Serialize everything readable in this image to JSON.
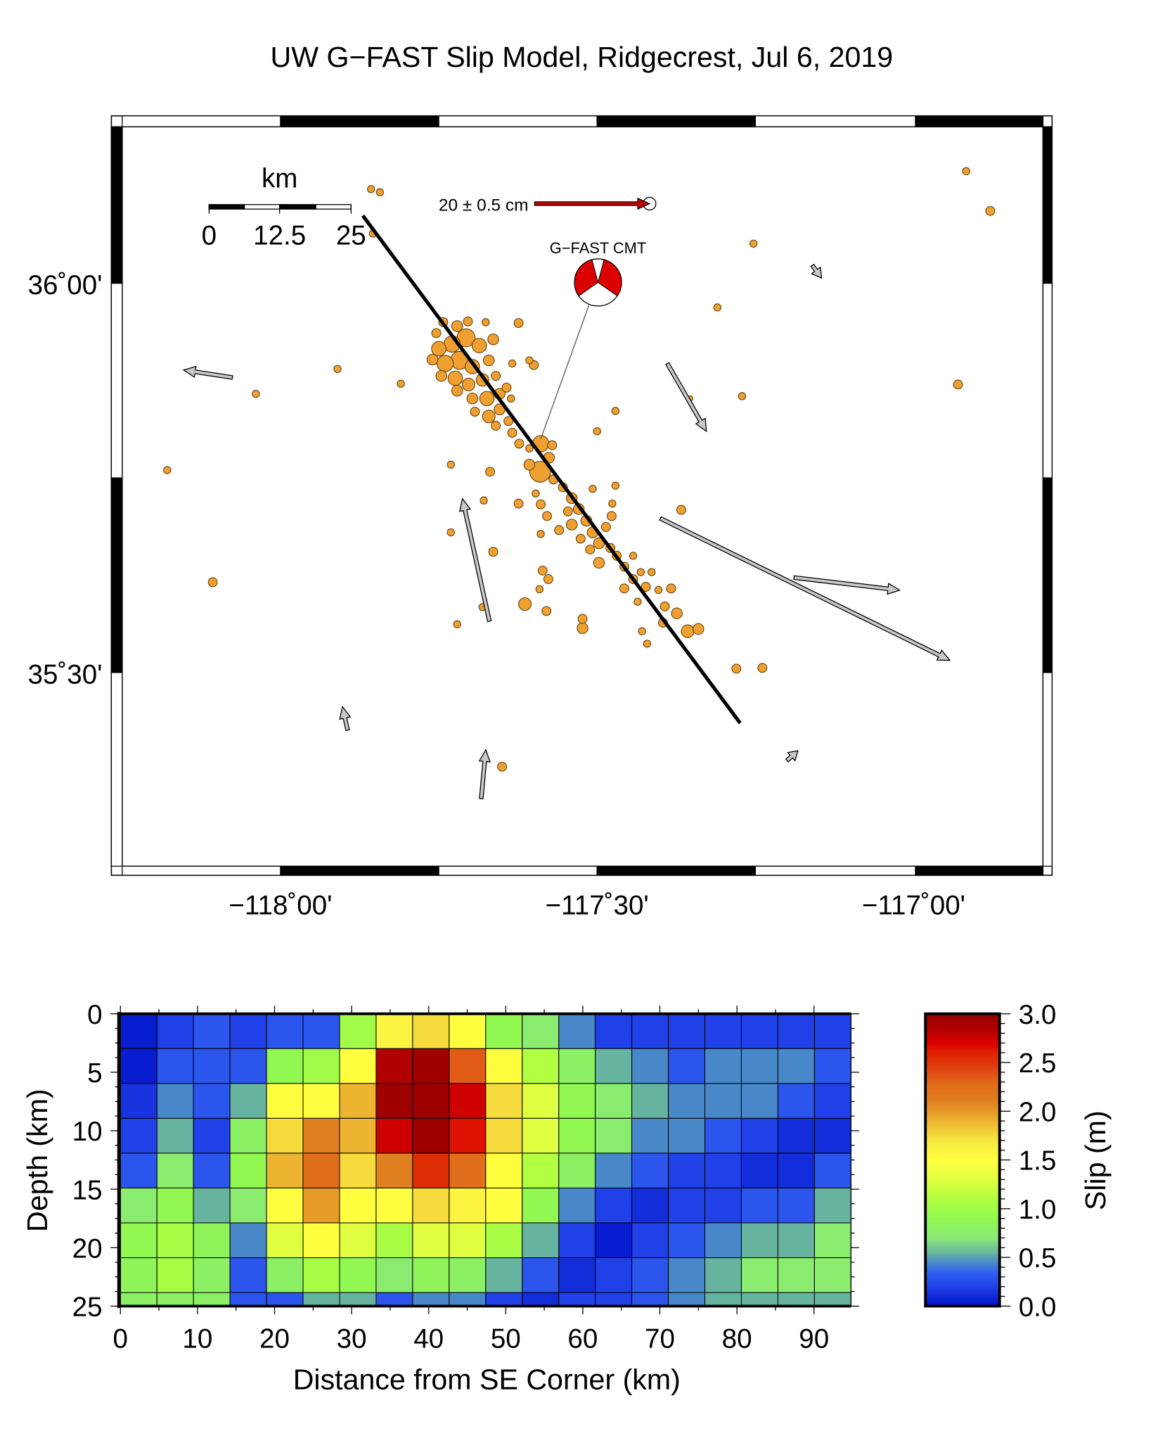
{
  "title": "UW G−FAST Slip Model, Ridgecrest, Jul 6, 2019",
  "chart_data": [
    {
      "type": "scatter",
      "name": "map",
      "lon_range": [
        -118.25,
        -116.8
      ],
      "lat_range": [
        35.25,
        36.2
      ],
      "x_ticks": [
        {
          "value": -118.0,
          "label": "−118˚00'"
        },
        {
          "value": -117.5,
          "label": "−117˚30'"
        },
        {
          "value": -117.0,
          "label": "−117˚00'"
        }
      ],
      "y_ticks": [
        {
          "value": 36.0,
          "label": "36˚00'"
        },
        {
          "value": 35.5,
          "label": "35˚30'"
        }
      ],
      "scale_bar": {
        "unit_label": "km",
        "tick_labels": [
          "0",
          "12.5",
          "25"
        ],
        "length_km": 25
      },
      "reference_vector": {
        "label": "20 ± 0.5 cm",
        "value_cm": 20,
        "color": "#cc0000"
      },
      "cmt": {
        "label": "G−FAST CMT",
        "lon": -117.589,
        "lat": 35.8,
        "fill": "#dd0000"
      },
      "fault_trace": [
        [
          -117.87,
          36.087
        ],
        [
          -117.274,
          35.435
        ]
      ],
      "earthquake_color": "#f0a030",
      "earthquakes": [
        [
          -117.857,
          36.121,
          4.1
        ],
        [
          -117.843,
          36.117,
          4.1
        ],
        [
          -117.854,
          36.064,
          4.1
        ],
        [
          -116.917,
          36.144,
          4.1
        ],
        [
          -116.879,
          36.093,
          4.5
        ],
        [
          -117.253,
          36.051,
          4.1
        ],
        [
          -117.31,
          35.969,
          4.1
        ],
        [
          -117.91,
          35.89,
          4.1
        ],
        [
          -118.039,
          35.858,
          4.1
        ],
        [
          -117.81,
          35.871,
          4.1
        ],
        [
          -118.179,
          35.76,
          4.1
        ],
        [
          -118.107,
          35.616,
          4.5
        ],
        [
          -117.271,
          35.855,
          4.1
        ],
        [
          -116.93,
          35.87,
          4.5
        ],
        [
          -117.471,
          35.836,
          4.1
        ],
        [
          -117.5,
          35.81,
          4.1
        ],
        [
          -117.731,
          35.767,
          4.1
        ],
        [
          -117.669,
          35.758,
          4.5
        ],
        [
          -117.367,
          35.709,
          4.5
        ],
        [
          -117.28,
          35.505,
          4.5
        ],
        [
          -117.239,
          35.506,
          4.5
        ],
        [
          -117.65,
          35.379,
          4.5
        ],
        [
          -117.721,
          35.562,
          4.1
        ],
        [
          -117.681,
          35.584,
          4.1
        ],
        [
          -117.664,
          35.655,
          4.5
        ],
        [
          -117.614,
          35.588,
          5.3
        ],
        [
          -117.58,
          35.579,
          4.5
        ],
        [
          -117.523,
          35.557,
          4.9
        ],
        [
          -117.523,
          35.569,
          4.5
        ],
        [
          -117.421,
          35.537,
          4.1
        ],
        [
          -117.429,
          35.553,
          4.1
        ],
        [
          -117.624,
          35.949,
          4.5
        ],
        [
          -117.624,
          35.717,
          4.5
        ],
        [
          -117.679,
          35.721,
          4.1
        ],
        [
          -117.731,
          35.68,
          4.1
        ],
        [
          -117.6,
          35.895,
          4.5
        ],
        [
          -117.634,
          35.897,
          4.1
        ],
        [
          -117.586,
          35.631,
          4.5
        ],
        [
          -117.577,
          35.62,
          4.5
        ],
        [
          -117.591,
          35.607,
          4.1
        ],
        [
          -117.471,
          35.74,
          4.1
        ],
        [
          -117.353,
          35.852,
          3.7
        ],
        [
          -117.743,
          35.95,
          4.5
        ],
        [
          -117.721,
          35.945,
          4.9
        ],
        [
          -117.704,
          35.951,
          4.5
        ],
        [
          -117.676,
          35.95,
          4.1
        ],
        [
          -117.75,
          35.916,
          5.7
        ],
        [
          -117.729,
          35.922,
          6.1
        ],
        [
          -117.707,
          35.93,
          6.5
        ],
        [
          -117.686,
          35.92,
          5.7
        ],
        [
          -117.664,
          35.928,
          4.9
        ],
        [
          -117.76,
          35.902,
          4.9
        ],
        [
          -117.74,
          35.897,
          6.1
        ],
        [
          -117.717,
          35.901,
          6.5
        ],
        [
          -117.697,
          35.893,
          5.7
        ],
        [
          -117.671,
          35.901,
          4.9
        ],
        [
          -117.746,
          35.881,
          4.9
        ],
        [
          -117.724,
          35.878,
          5.7
        ],
        [
          -117.703,
          35.87,
          5.3
        ],
        [
          -117.681,
          35.876,
          5.3
        ],
        [
          -117.66,
          35.881,
          4.5
        ],
        [
          -117.721,
          35.862,
          4.9
        ],
        [
          -117.697,
          35.852,
          4.9
        ],
        [
          -117.674,
          35.852,
          5.7
        ],
        [
          -117.654,
          35.858,
          4.9
        ],
        [
          -117.636,
          35.852,
          4.1
        ],
        [
          -117.693,
          35.835,
          4.5
        ],
        [
          -117.671,
          35.829,
          5.3
        ],
        [
          -117.654,
          35.838,
          4.9
        ],
        [
          -117.66,
          35.817,
          4.5
        ],
        [
          -117.64,
          35.823,
          4.5
        ],
        [
          -117.634,
          35.808,
          4.5
        ],
        [
          -117.623,
          35.794,
          4.5
        ],
        [
          -117.607,
          35.788,
          4.1
        ],
        [
          -117.589,
          35.794,
          6.1
        ],
        [
          -117.571,
          35.792,
          4.5
        ],
        [
          -117.59,
          35.758,
          7.1
        ],
        [
          -117.607,
          35.767,
          4.9
        ],
        [
          -117.576,
          35.776,
          4.9
        ],
        [
          -117.569,
          35.748,
          4.5
        ],
        [
          -117.554,
          35.738,
          4.5
        ],
        [
          -117.54,
          35.724,
          4.9
        ],
        [
          -117.529,
          35.71,
          4.9
        ],
        [
          -117.517,
          35.695,
          4.9
        ],
        [
          -117.507,
          35.68,
          4.9
        ],
        [
          -117.497,
          35.666,
          4.9
        ],
        [
          -117.486,
          35.687,
          4.5
        ],
        [
          -117.477,
          35.701,
          4.5
        ],
        [
          -117.476,
          35.717,
          4.1
        ],
        [
          -117.54,
          35.69,
          4.9
        ],
        [
          -117.56,
          35.683,
          4.5
        ],
        [
          -117.526,
          35.672,
          4.5
        ],
        [
          -117.511,
          35.658,
          4.5
        ],
        [
          -117.497,
          35.641,
          4.9
        ],
        [
          -117.479,
          35.66,
          4.5
        ],
        [
          -117.469,
          35.65,
          4.5
        ],
        [
          -117.457,
          35.636,
          4.5
        ],
        [
          -117.443,
          35.62,
          4.5
        ],
        [
          -117.431,
          35.629,
          4.1
        ],
        [
          -117.423,
          35.61,
          4.5
        ],
        [
          -117.403,
          35.606,
          4.1
        ],
        [
          -117.383,
          35.608,
          4.5
        ],
        [
          -117.393,
          35.585,
          4.5
        ],
        [
          -117.396,
          35.564,
          4.5
        ],
        [
          -117.374,
          35.576,
          4.9
        ],
        [
          -117.357,
          35.553,
          5.3
        ],
        [
          -117.34,
          35.556,
          4.9
        ],
        [
          -117.443,
          35.65,
          4.1
        ],
        [
          -117.589,
          35.716,
          4.5
        ],
        [
          -117.579,
          35.701,
          4.5
        ],
        [
          -117.589,
          35.678,
          4.1
        ],
        [
          -117.597,
          35.73,
          4.1
        ],
        [
          -117.507,
          35.736,
          4.1
        ],
        [
          -117.436,
          35.591,
          4.1
        ],
        [
          -117.457,
          35.608,
          4.5
        ],
        [
          -117.414,
          35.629,
          4.1
        ],
        [
          -117.546,
          35.707,
          4.5
        ],
        [
          -117.754,
          35.936,
          4.5
        ],
        [
          -117.643,
          35.866,
          4.5
        ],
        [
          -117.607,
          35.901,
          4.1
        ]
      ],
      "gps_displacements": [
        {
          "lon": -118.076,
          "lat": 35.879,
          "east_cm": -8.5,
          "north_cm": 1.3
        },
        {
          "lon": -117.389,
          "lat": 35.897,
          "east_cm": 6.8,
          "north_cm": -11.8
        },
        {
          "lon": -117.67,
          "lat": 35.566,
          "east_cm": -4.7,
          "north_cm": 21.3
        },
        {
          "lon": -117.4,
          "lat": 35.698,
          "east_cm": 50.4,
          "north_cm": -24.7
        },
        {
          "lon": -117.189,
          "lat": 35.622,
          "east_cm": 18.4,
          "north_cm": -2.2
        },
        {
          "lon": -117.16,
          "lat": 36.023,
          "east_cm": 1.6,
          "north_cm": -2.2
        },
        {
          "lon": -117.894,
          "lat": 35.426,
          "east_cm": -0.9,
          "north_cm": 4.1
        },
        {
          "lon": -117.683,
          "lat": 35.338,
          "east_cm": 0.8,
          "north_cm": 8.5
        },
        {
          "lon": -117.2,
          "lat": 35.387,
          "east_cm": 1.9,
          "north_cm": 1.7
        }
      ]
    },
    {
      "type": "heatmap",
      "name": "slip-model",
      "xlabel": "Distance from SE Corner (km)",
      "ylabel": "Depth (km)",
      "xlim": [
        0,
        94.8
      ],
      "ylim": [
        25,
        0
      ],
      "x_ticks": [
        "0",
        "10",
        "20",
        "30",
        "40",
        "50",
        "60",
        "70",
        "80",
        "90"
      ],
      "y_ticks": [
        "0",
        "5",
        "10",
        "15",
        "20",
        "25"
      ],
      "patch_length_km": 4.74,
      "patch_width_km": 2.98,
      "colorbar": {
        "label": "Slip (m)",
        "range": [
          0,
          3
        ],
        "ticks": [
          "0.0",
          "0.5",
          "1.0",
          "1.5",
          "2.0",
          "2.5",
          "3.0"
        ]
      },
      "slip_m": [
        [
          0.05,
          0.2,
          0.3,
          0.2,
          0.3,
          0.3,
          1.0,
          1.6,
          1.75,
          1.5,
          0.9,
          0.75,
          0.45,
          0.2,
          0.2,
          0.2,
          0.2,
          0.2,
          0.2,
          0.2
        ],
        [
          0.05,
          0.3,
          0.3,
          0.3,
          0.9,
          1.0,
          1.5,
          2.85,
          2.95,
          2.35,
          1.5,
          1.1,
          0.8,
          0.55,
          0.45,
          0.3,
          0.45,
          0.45,
          0.45,
          0.3
        ],
        [
          0.15,
          0.45,
          0.3,
          0.55,
          1.5,
          1.5,
          1.9,
          2.95,
          2.95,
          2.75,
          1.75,
          1.3,
          0.9,
          0.75,
          0.55,
          0.45,
          0.45,
          0.45,
          0.3,
          0.2
        ],
        [
          0.2,
          0.55,
          0.2,
          0.8,
          1.75,
          2.1,
          1.9,
          2.75,
          2.95,
          2.65,
          1.75,
          1.3,
          0.9,
          0.75,
          0.45,
          0.45,
          0.3,
          0.2,
          0.12,
          0.12
        ],
        [
          0.3,
          0.75,
          0.3,
          0.9,
          1.9,
          2.25,
          1.75,
          2.1,
          2.55,
          2.25,
          1.5,
          1.1,
          0.8,
          0.45,
          0.3,
          0.2,
          0.2,
          0.12,
          0.12,
          0.3
        ],
        [
          0.75,
          0.9,
          0.55,
          0.75,
          1.5,
          2.0,
          1.5,
          1.5,
          1.75,
          1.6,
          1.5,
          0.9,
          0.45,
          0.2,
          0.12,
          0.2,
          0.2,
          0.3,
          0.3,
          0.55
        ],
        [
          0.9,
          1.05,
          0.85,
          0.45,
          1.3,
          1.5,
          1.3,
          1.05,
          1.3,
          1.3,
          1.05,
          0.55,
          0.2,
          0.05,
          0.2,
          0.3,
          0.45,
          0.55,
          0.55,
          0.75
        ],
        [
          0.85,
          1.05,
          0.8,
          0.3,
          0.8,
          1.05,
          0.9,
          0.75,
          0.85,
          0.8,
          0.55,
          0.3,
          0.12,
          0.2,
          0.3,
          0.45,
          0.55,
          0.75,
          0.75,
          0.75
        ],
        [
          0.8,
          0.8,
          0.8,
          0.3,
          0.3,
          0.55,
          0.55,
          0.3,
          0.45,
          0.45,
          0.2,
          0.12,
          0.2,
          0.2,
          0.3,
          0.45,
          0.55,
          0.55,
          0.55,
          0.55
        ]
      ]
    }
  ]
}
